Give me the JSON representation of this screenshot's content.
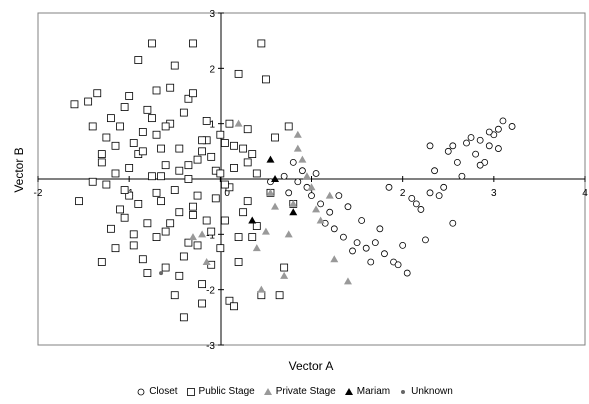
{
  "chart_data": {
    "type": "scatter",
    "xlabel": "Vector A",
    "ylabel": "Vector B",
    "xlim": [
      -2,
      4
    ],
    "ylim": [
      -3,
      3
    ],
    "x_ticks": [
      "-2",
      "-1",
      "0",
      "1",
      "2",
      "3",
      "4"
    ],
    "y_ticks": [
      "-3",
      "-2",
      "-1",
      "0",
      "1",
      "2",
      "3"
    ],
    "legend_position": "bottom",
    "grid": false,
    "series": [
      {
        "name": "Closet",
        "marker": "circle-open",
        "color": "#000000",
        "points": [
          [
            0.55,
            -0.05
          ],
          [
            0.7,
            0.05
          ],
          [
            0.75,
            -0.25
          ],
          [
            0.8,
            0.3
          ],
          [
            0.85,
            -0.05
          ],
          [
            0.9,
            0.15
          ],
          [
            0.95,
            -0.15
          ],
          [
            1.0,
            -0.3
          ],
          [
            1.05,
            0.1
          ],
          [
            1.1,
            -0.45
          ],
          [
            1.15,
            -0.8
          ],
          [
            1.2,
            -0.6
          ],
          [
            1.25,
            -0.9
          ],
          [
            1.3,
            -0.3
          ],
          [
            1.35,
            -1.05
          ],
          [
            1.4,
            -0.5
          ],
          [
            1.45,
            -1.3
          ],
          [
            1.5,
            -1.15
          ],
          [
            1.55,
            -0.75
          ],
          [
            1.6,
            -1.25
          ],
          [
            1.65,
            -1.5
          ],
          [
            1.7,
            -1.15
          ],
          [
            1.75,
            -0.9
          ],
          [
            1.8,
            -1.35
          ],
          [
            1.85,
            -0.15
          ],
          [
            1.9,
            -1.5
          ],
          [
            1.95,
            -1.55
          ],
          [
            2.0,
            -1.2
          ],
          [
            2.05,
            -1.7
          ],
          [
            2.1,
            -0.35
          ],
          [
            2.15,
            -0.45
          ],
          [
            2.2,
            -0.55
          ],
          [
            2.25,
            -1.1
          ],
          [
            2.3,
            -0.25
          ],
          [
            2.35,
            0.15
          ],
          [
            2.4,
            -0.3
          ],
          [
            2.45,
            -0.15
          ],
          [
            2.5,
            0.5
          ],
          [
            2.55,
            0.6
          ],
          [
            2.6,
            0.3
          ],
          [
            2.65,
            0.05
          ],
          [
            2.7,
            0.65
          ],
          [
            2.75,
            0.75
          ],
          [
            2.8,
            0.45
          ],
          [
            2.85,
            0.7
          ],
          [
            2.9,
            0.3
          ],
          [
            2.95,
            0.6
          ],
          [
            3.0,
            0.8
          ],
          [
            3.05,
            0.55
          ],
          [
            3.1,
            1.05
          ],
          [
            2.95,
            0.85
          ],
          [
            2.3,
            0.6
          ],
          [
            2.55,
            -0.8
          ],
          [
            3.05,
            0.9
          ],
          [
            3.2,
            0.95
          ],
          [
            2.85,
            0.25
          ]
        ]
      },
      {
        "name": "Public Stage",
        "marker": "square-open",
        "color": "#000000",
        "points": [
          [
            -1.6,
            1.35
          ],
          [
            -1.55,
            -0.4
          ],
          [
            -1.45,
            1.4
          ],
          [
            -1.4,
            0.95
          ],
          [
            -1.35,
            1.55
          ],
          [
            -1.3,
            0.3
          ],
          [
            -1.25,
            -0.1
          ],
          [
            -1.2,
            1.1
          ],
          [
            -1.15,
            0.6
          ],
          [
            -1.1,
            -0.55
          ],
          [
            -1.05,
            1.3
          ],
          [
            -1.0,
            0.2
          ],
          [
            -0.95,
            -1.2
          ],
          [
            -0.9,
            2.15
          ],
          [
            -0.85,
            0.85
          ],
          [
            -0.8,
            -0.8
          ],
          [
            -0.75,
            2.45
          ],
          [
            -0.7,
            1.6
          ],
          [
            -0.65,
            0.05
          ],
          [
            -0.6,
            -1.6
          ],
          [
            -0.55,
            1.0
          ],
          [
            -0.5,
            -0.2
          ],
          [
            -0.45,
            0.55
          ],
          [
            -0.4,
            -1.4
          ],
          [
            -0.35,
            1.45
          ],
          [
            -0.3,
            -0.5
          ],
          [
            -0.25,
            0.35
          ],
          [
            -0.2,
            -1.9
          ],
          [
            -0.15,
            0.7
          ],
          [
            -0.1,
            -0.95
          ],
          [
            -0.05,
            0.15
          ],
          [
            0.0,
            -1.25
          ],
          [
            0.05,
            0.65
          ],
          [
            0.1,
            -2.2
          ],
          [
            0.15,
            0.2
          ],
          [
            0.2,
            1.9
          ],
          [
            0.25,
            -0.6
          ],
          [
            0.3,
            0.9
          ],
          [
            0.35,
            -1.05
          ],
          [
            0.4,
            0.1
          ],
          [
            0.45,
            2.45
          ],
          [
            0.5,
            1.8
          ],
          [
            0.55,
            -0.25
          ],
          [
            0.6,
            0.75
          ],
          [
            0.65,
            -2.1
          ],
          [
            0.7,
            -1.6
          ],
          [
            0.75,
            0.95
          ],
          [
            0.8,
            -0.45
          ],
          [
            -1.3,
            -1.5
          ],
          [
            -1.2,
            -0.9
          ],
          [
            -1.1,
            0.95
          ],
          [
            -1.0,
            -0.3
          ],
          [
            -0.9,
            0.45
          ],
          [
            -0.8,
            1.25
          ],
          [
            -0.7,
            -1.05
          ],
          [
            -0.6,
            0.25
          ],
          [
            -0.5,
            -2.1
          ],
          [
            -0.4,
            1.2
          ],
          [
            -0.3,
            -0.65
          ],
          [
            -0.2,
            0.5
          ],
          [
            -0.1,
            -1.55
          ],
          [
            0.0,
            0.8
          ],
          [
            0.1,
            -0.15
          ],
          [
            0.2,
            -1.5
          ],
          [
            0.3,
            0.3
          ],
          [
            0.4,
            -0.85
          ],
          [
            -1.4,
            -0.05
          ],
          [
            -0.95,
            0.65
          ],
          [
            -0.65,
            -0.4
          ],
          [
            -0.35,
            0.0
          ],
          [
            -0.05,
            -0.35
          ],
          [
            0.25,
            0.55
          ],
          [
            -1.25,
            0.75
          ],
          [
            -0.85,
            -1.45
          ],
          [
            -0.55,
            1.65
          ],
          [
            -0.25,
            -1.2
          ],
          [
            0.05,
            -0.75
          ],
          [
            -1.15,
            -1.25
          ],
          [
            -0.75,
            0.05
          ],
          [
            -0.45,
            -0.6
          ],
          [
            -0.15,
            1.05
          ],
          [
            0.15,
            -2.3
          ],
          [
            -1.05,
            -0.7
          ],
          [
            -0.6,
            -0.95
          ],
          [
            -0.3,
            2.45
          ],
          [
            0.0,
            0.1
          ],
          [
            0.35,
            0.45
          ],
          [
            -0.85,
            0.5
          ],
          [
            -0.45,
            -1.75
          ],
          [
            -0.2,
            0.7
          ],
          [
            0.1,
            1.0
          ],
          [
            -0.7,
            -0.25
          ],
          [
            -0.35,
            -1.15
          ],
          [
            0.05,
            -0.1
          ],
          [
            -0.95,
            -1.0
          ],
          [
            -0.6,
            0.95
          ],
          [
            -0.25,
            -0.3
          ],
          [
            -0.5,
            2.05
          ],
          [
            0.15,
            0.6
          ],
          [
            -1.15,
            0.1
          ],
          [
            -0.4,
            -2.5
          ],
          [
            0.45,
            -2.1
          ],
          [
            -0.8,
            -1.7
          ],
          [
            -0.1,
            0.4
          ],
          [
            -1.0,
            1.5
          ],
          [
            -0.65,
            0.55
          ],
          [
            -0.3,
            1.55
          ],
          [
            0.2,
            -1.05
          ],
          [
            -0.9,
            -0.45
          ],
          [
            -0.55,
            -0.8
          ],
          [
            -0.15,
            -0.75
          ],
          [
            -1.3,
            0.45
          ],
          [
            -0.7,
            0.8
          ],
          [
            -0.35,
            0.25
          ],
          [
            0.3,
            -0.4
          ],
          [
            -1.05,
            -0.2
          ],
          [
            -0.45,
            0.15
          ],
          [
            -0.75,
            1.1
          ],
          [
            -0.2,
            -2.25
          ]
        ]
      },
      {
        "name": "Private Stage",
        "marker": "triangle-filled",
        "color": "#999999",
        "points": [
          [
            -0.3,
            -1.05
          ],
          [
            -0.2,
            -1.0
          ],
          [
            0.2,
            1.0
          ],
          [
            0.4,
            -1.25
          ],
          [
            0.45,
            -2.0
          ],
          [
            0.55,
            -0.25
          ],
          [
            0.6,
            -0.5
          ],
          [
            0.7,
            -1.75
          ],
          [
            0.75,
            -1.0
          ],
          [
            0.8,
            -0.45
          ],
          [
            0.85,
            0.8
          ],
          [
            0.9,
            0.35
          ],
          [
            0.95,
            0.05
          ],
          [
            1.0,
            -0.15
          ],
          [
            1.05,
            -0.55
          ],
          [
            1.1,
            -0.75
          ],
          [
            1.2,
            -0.3
          ],
          [
            1.25,
            -1.45
          ],
          [
            1.4,
            -1.85
          ],
          [
            0.5,
            -0.95
          ],
          [
            -0.15,
            -1.5
          ],
          [
            0.85,
            0.55
          ]
        ]
      },
      {
        "name": "Mariam",
        "marker": "triangle-filled",
        "color": "#000000",
        "points": [
          [
            0.35,
            -0.75
          ],
          [
            0.55,
            0.35
          ],
          [
            0.6,
            0.0
          ],
          [
            0.8,
            -0.6
          ]
        ]
      },
      {
        "name": "Unknown",
        "marker": "circle-filled-small",
        "color": "#666666",
        "points": [
          [
            -0.65,
            -1.7
          ]
        ]
      }
    ]
  }
}
